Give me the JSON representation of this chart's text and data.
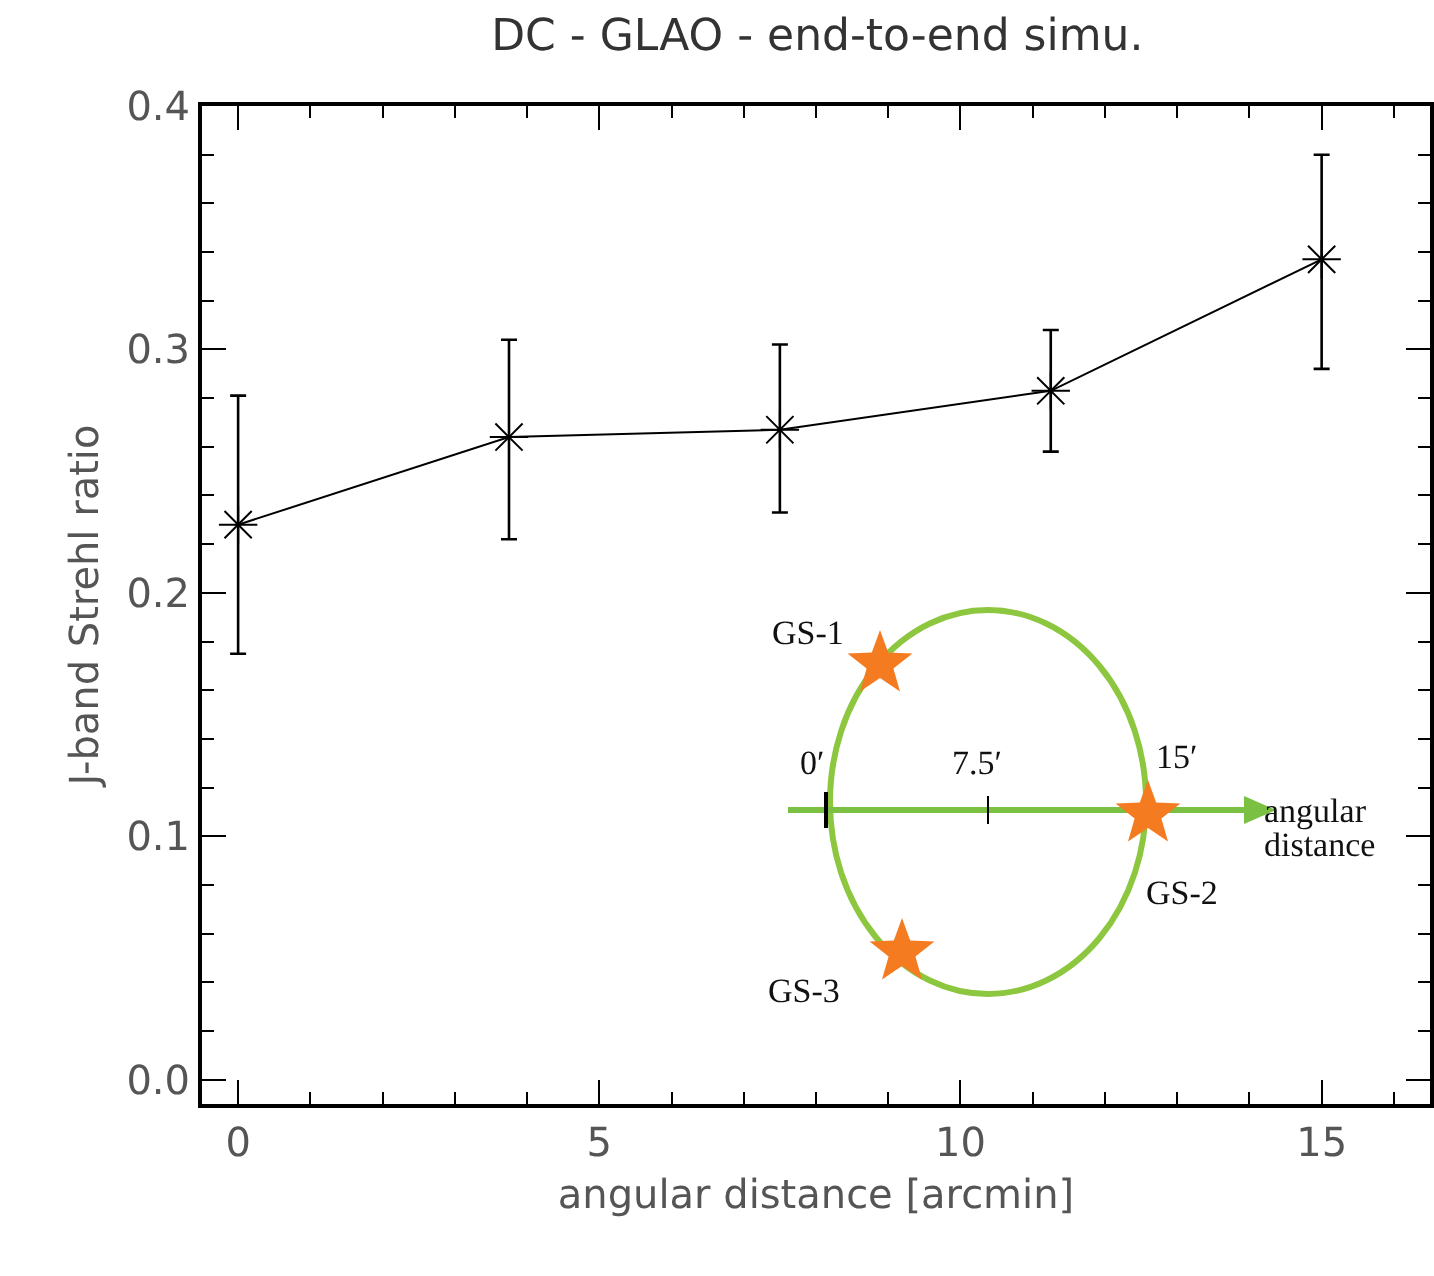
{
  "chart_data": {
    "type": "line",
    "title": "DC - GLAO - end-to-end simu.",
    "xlabel": "angular distance [arcmin]",
    "ylabel": "J-band Strehl ratio",
    "x": [
      0,
      3.75,
      7.5,
      11.25,
      15
    ],
    "series": [
      {
        "color": "#000000",
        "values": [
          0.228,
          0.264,
          0.267,
          0.283,
          0.337
        ],
        "errors": [
          [
            0.175,
            0.281
          ],
          [
            0.222,
            0.304
          ],
          [
            0.233,
            0.302
          ],
          [
            0.258,
            0.308
          ],
          [
            0.292,
            0.38
          ]
        ]
      }
    ],
    "xlim": [
      -0.5,
      16.5
    ],
    "xticks": [
      0,
      5,
      10,
      15
    ],
    "ylim": [
      -0.01,
      0.4
    ],
    "yticks": [
      {
        "value": 0,
        "label": "0.0"
      },
      0.1,
      0.2,
      0.3,
      0.4
    ],
    "marker": "cross",
    "line_style": "solid",
    "grid": false,
    "annotations": [
      "GS-1",
      "GS-2",
      "GS-3",
      "0′",
      "7.5′",
      "15′",
      "angular distance"
    ]
  }
}
